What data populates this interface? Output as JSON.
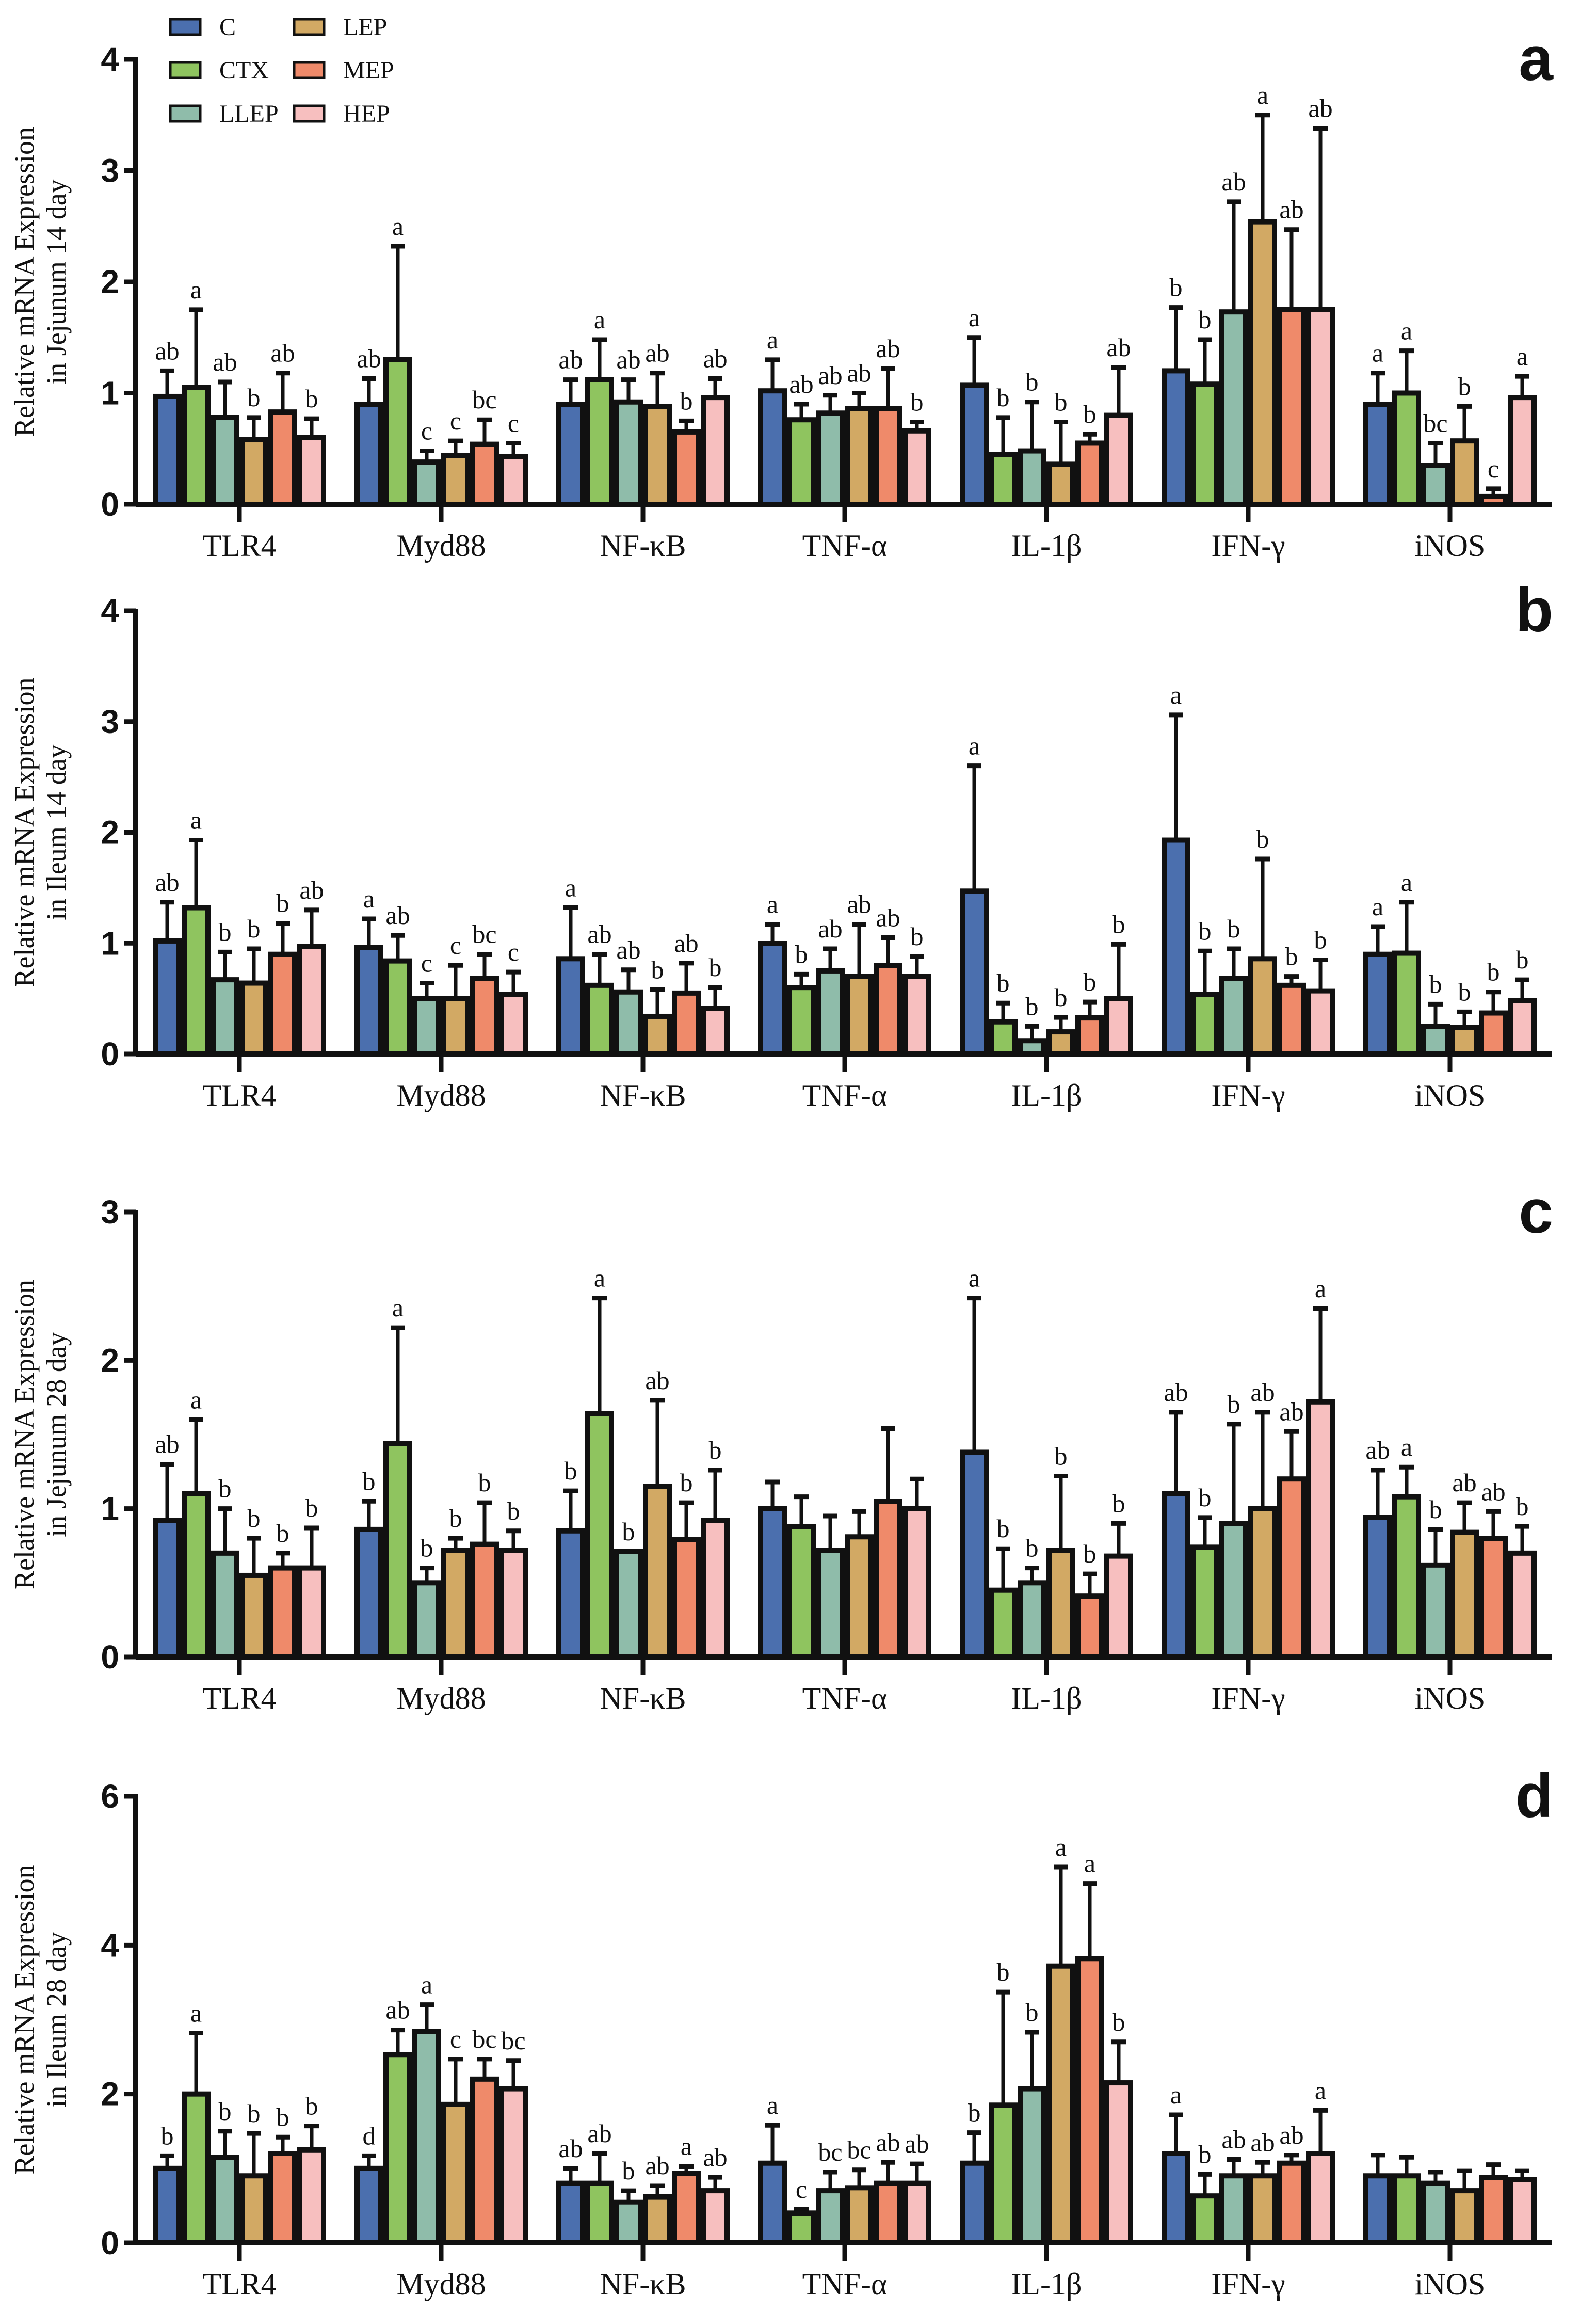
{
  "chart_data": {
    "type": "bar",
    "legend": {
      "placement": "top-left",
      "entries": [
        "C",
        "CTX",
        "LLEP",
        "LEP",
        "MEP",
        "HEP"
      ]
    },
    "colors": {
      "C": "#4b6fae",
      "CTX": "#8fc45f",
      "LLEP": "#8fbcaa",
      "LEP": "#d2a964",
      "MEP": "#ef8a6a",
      "HEP": "#f7bfbf",
      "outline": "#111111"
    },
    "categories": [
      "TLR4",
      "Myd88",
      "NF-κB",
      "TNF-α",
      "IL-1β",
      "IFN-γ",
      "iNOS"
    ],
    "panels": [
      {
        "label": "a",
        "ylabel": [
          "Relative mRNA Expression",
          "in Jejunum 14 day"
        ],
        "ylim": [
          0,
          4
        ],
        "yticks": [
          "0",
          "1",
          "2",
          "3",
          "4"
        ],
        "values": [
          [
            0.97,
            1.05,
            0.78,
            0.58,
            0.83,
            0.6
          ],
          [
            0.9,
            1.3,
            0.38,
            0.44,
            0.54,
            0.43
          ],
          [
            0.9,
            1.12,
            0.92,
            0.88,
            0.65,
            0.96
          ],
          [
            1.02,
            0.76,
            0.82,
            0.86,
            0.86,
            0.66
          ],
          [
            1.07,
            0.45,
            0.48,
            0.36,
            0.55,
            0.8
          ],
          [
            1.2,
            1.08,
            1.73,
            2.54,
            1.75,
            1.75
          ],
          [
            0.9,
            1.0,
            0.35,
            0.57,
            0.07,
            0.96
          ]
        ],
        "error_top": [
          [
            1.2,
            1.75,
            1.1,
            0.78,
            1.18,
            0.77
          ],
          [
            1.13,
            2.32,
            0.48,
            0.57,
            0.76,
            0.55
          ],
          [
            1.12,
            1.48,
            1.12,
            1.18,
            0.75,
            1.13
          ],
          [
            1.3,
            0.9,
            0.98,
            1.0,
            1.22,
            0.74
          ],
          [
            1.5,
            0.78,
            0.92,
            0.74,
            0.63,
            1.23
          ],
          [
            1.77,
            1.48,
            2.72,
            3.5,
            2.47,
            3.38
          ],
          [
            1.18,
            1.38,
            0.55,
            0.88,
            0.14,
            1.15
          ]
        ],
        "letters": [
          [
            "ab",
            "a",
            "ab",
            "b",
            "ab",
            "b"
          ],
          [
            "ab",
            "a",
            "c",
            "c",
            "bc",
            "c"
          ],
          [
            "ab",
            "a",
            "ab",
            "ab",
            "b",
            "ab"
          ],
          [
            "a",
            "ab",
            "ab",
            "ab",
            "ab",
            "b"
          ],
          [
            "a",
            "b",
            "b",
            "b",
            "b",
            "ab"
          ],
          [
            "b",
            "b",
            "ab",
            "a",
            "ab",
            "ab"
          ],
          [
            "a",
            "a",
            "bc",
            "b",
            "c",
            "a"
          ]
        ]
      },
      {
        "label": "b",
        "ylabel": [
          "Relative mRNA Expression",
          "in Ileum 14 day"
        ],
        "ylim": [
          0,
          4
        ],
        "yticks": [
          "0",
          "1",
          "2",
          "3",
          "4"
        ],
        "values": [
          [
            1.02,
            1.32,
            0.67,
            0.64,
            0.9,
            0.97
          ],
          [
            0.96,
            0.84,
            0.5,
            0.5,
            0.68,
            0.54
          ],
          [
            0.86,
            0.62,
            0.56,
            0.34,
            0.55,
            0.41
          ],
          [
            1.0,
            0.6,
            0.75,
            0.7,
            0.8,
            0.7
          ],
          [
            1.47,
            0.29,
            0.12,
            0.2,
            0.33,
            0.5
          ],
          [
            1.93,
            0.54,
            0.68,
            0.86,
            0.62,
            0.57
          ],
          [
            0.9,
            0.91,
            0.25,
            0.24,
            0.37,
            0.48
          ]
        ],
        "error_top": [
          [
            1.37,
            1.93,
            0.92,
            0.95,
            1.18,
            1.3
          ],
          [
            1.22,
            1.07,
            0.64,
            0.8,
            0.9,
            0.74
          ],
          [
            1.32,
            0.9,
            0.76,
            0.58,
            0.82,
            0.6
          ],
          [
            1.17,
            0.72,
            0.95,
            1.17,
            1.05,
            0.88
          ],
          [
            2.6,
            0.46,
            0.25,
            0.33,
            0.47,
            0.99
          ],
          [
            3.06,
            0.93,
            0.95,
            1.76,
            0.7,
            0.85
          ],
          [
            1.15,
            1.37,
            0.45,
            0.38,
            0.56,
            0.67
          ]
        ],
        "letters": [
          [
            "ab",
            "a",
            "b",
            "b",
            "b",
            "ab"
          ],
          [
            "a",
            "ab",
            "c",
            "c",
            "bc",
            "c"
          ],
          [
            "a",
            "ab",
            "ab",
            "b",
            "ab",
            "b"
          ],
          [
            "a",
            "b",
            "ab",
            "ab",
            "ab",
            "b"
          ],
          [
            "a",
            "b",
            "b",
            "b",
            "b",
            "b"
          ],
          [
            "a",
            "b",
            "b",
            "b",
            "b",
            "b"
          ],
          [
            "a",
            "a",
            "b",
            "b",
            "b",
            "b"
          ]
        ]
      },
      {
        "label": "c",
        "ylabel": [
          "Relative mRNA Expression",
          "in Jejunum 28 day"
        ],
        "ylim": [
          0,
          3
        ],
        "yticks": [
          "0",
          "1",
          "2",
          "3"
        ],
        "values": [
          [
            0.92,
            1.1,
            0.7,
            0.55,
            0.6,
            0.6
          ],
          [
            0.86,
            1.44,
            0.5,
            0.72,
            0.76,
            0.72
          ],
          [
            0.85,
            1.64,
            0.71,
            1.15,
            0.79,
            0.92
          ],
          [
            1.0,
            0.88,
            0.72,
            0.81,
            1.05,
            1.0
          ],
          [
            1.38,
            0.45,
            0.5,
            0.72,
            0.41,
            0.68
          ],
          [
            1.1,
            0.74,
            0.9,
            1.0,
            1.2,
            1.72
          ],
          [
            0.94,
            1.08,
            0.62,
            0.84,
            0.8,
            0.7
          ]
        ],
        "error_top": [
          [
            1.3,
            1.6,
            1.0,
            0.8,
            0.7,
            0.87
          ],
          [
            1.05,
            2.22,
            0.6,
            0.8,
            1.04,
            0.85
          ],
          [
            1.12,
            2.42,
            0.71,
            1.73,
            1.04,
            1.26
          ],
          [
            1.18,
            1.08,
            0.95,
            0.98,
            1.54,
            1.2
          ],
          [
            2.42,
            0.73,
            0.6,
            1.22,
            0.56,
            0.9
          ],
          [
            1.65,
            0.94,
            1.57,
            1.65,
            1.52,
            2.35
          ],
          [
            1.26,
            1.28,
            0.86,
            1.04,
            0.98,
            0.88
          ]
        ],
        "letters": [
          [
            "ab",
            "a",
            "b",
            "b",
            "b",
            "b"
          ],
          [
            "b",
            "a",
            "b",
            "b",
            "b",
            "b"
          ],
          [
            "b",
            "a",
            "b",
            "ab",
            "b",
            "b"
          ],
          [
            "",
            "",
            "",
            "",
            "",
            ""
          ],
          [
            "a",
            "b",
            "b",
            "b",
            "b",
            "b"
          ],
          [
            "ab",
            "b",
            "b",
            "ab",
            "ab",
            "a"
          ],
          [
            "ab",
            "a",
            "b",
            "ab",
            "ab",
            "b"
          ]
        ]
      },
      {
        "label": "d",
        "ylabel": [
          "Relative mRNA Expression",
          "in Ileum 28 day"
        ],
        "ylim": [
          0,
          6
        ],
        "yticks": [
          "0",
          "2",
          "4",
          "6"
        ],
        "values": [
          [
            1.0,
            2.0,
            1.15,
            0.9,
            1.2,
            1.25
          ],
          [
            1.0,
            2.53,
            2.84,
            1.86,
            2.2,
            2.07
          ],
          [
            0.8,
            0.8,
            0.55,
            0.62,
            0.93,
            0.7
          ],
          [
            1.07,
            0.4,
            0.7,
            0.74,
            0.8,
            0.8
          ],
          [
            1.07,
            1.85,
            2.07,
            3.72,
            3.82,
            2.15
          ],
          [
            1.2,
            0.63,
            0.9,
            0.9,
            1.07,
            1.2
          ],
          [
            0.9,
            0.9,
            0.8,
            0.7,
            0.88,
            0.85
          ]
        ],
        "error_top": [
          [
            1.17,
            2.82,
            1.5,
            1.47,
            1.42,
            1.57
          ],
          [
            1.17,
            2.86,
            3.2,
            2.47,
            2.47,
            2.45
          ],
          [
            1.0,
            1.2,
            0.7,
            0.77,
            1.03,
            0.88
          ],
          [
            1.58,
            0.45,
            0.95,
            0.98,
            1.08,
            1.06
          ],
          [
            1.48,
            3.37,
            2.83,
            5.05,
            4.83,
            2.7
          ],
          [
            1.72,
            0.92,
            1.12,
            1.08,
            1.18,
            1.78
          ],
          [
            1.18,
            1.15,
            0.95,
            0.97,
            1.05,
            0.97
          ]
        ],
        "letters": [
          [
            "b",
            "a",
            "b",
            "b",
            "b",
            "b"
          ],
          [
            "d",
            "ab",
            "a",
            "c",
            "bc",
            "bc"
          ],
          [
            "ab",
            "ab",
            "b",
            "ab",
            "a",
            "ab"
          ],
          [
            "a",
            "c",
            "bc",
            "bc",
            "ab",
            "ab"
          ],
          [
            "b",
            "b",
            "b",
            "a",
            "a",
            "b"
          ],
          [
            "a",
            "b",
            "ab",
            "ab",
            "ab",
            "a"
          ],
          [
            "",
            "",
            "",
            "",
            "",
            ""
          ]
        ]
      }
    ]
  }
}
